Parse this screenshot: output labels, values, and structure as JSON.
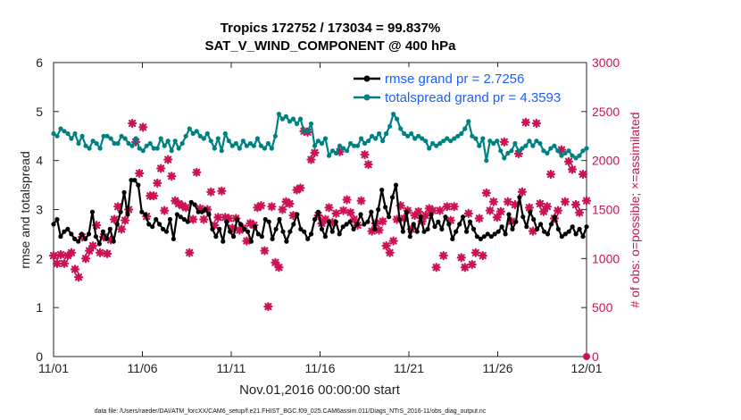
{
  "chart_data": {
    "type": "line",
    "title": "Tropics 172752 / 173034 = 99.837%",
    "subtitle": "SAT_V_WIND_COMPONENT @ 400 hPa",
    "xlabel": "Nov.01,2016 00:00:00 start",
    "ylabel": "rmse and totalspread",
    "ylabel_right": "# of obs: o=possible; ×=assimilated",
    "footnote": "data file: /Users/raeder/DAI/ATM_forcXX/CAM6_setup/f.e21.FHIST_BGC.f09_025.CAM6assim.011/Diags_NTrS_2016-11/obs_diag_output.nc",
    "x_ticks": [
      "11/01",
      "11/06",
      "11/11",
      "11/16",
      "11/21",
      "11/26",
      "12/01"
    ],
    "xlim": [
      0,
      30
    ],
    "ylim": [
      0,
      6
    ],
    "y_ticks": [
      "0",
      "1",
      "2",
      "3",
      "4",
      "5",
      "6"
    ],
    "ylim_right": [
      0,
      3000
    ],
    "y_ticks_right": [
      "0",
      "500",
      "1000",
      "1500",
      "2000",
      "2500",
      "3000"
    ],
    "colors": {
      "rmse": "#000000",
      "totalspread": "#008080",
      "obs": "#cc1155",
      "legend_text": "#1a5fff",
      "right_axis": "#cc1155"
    },
    "series": [
      {
        "name": "rmse",
        "legend": "rmse grand pr = 2.7256",
        "values": [
          2.7,
          2.8,
          2.45,
          2.55,
          2.6,
          2.5,
          2.4,
          2.35,
          2.5,
          2.4,
          2.5,
          2.95,
          2.45,
          2.3,
          2.55,
          2.4,
          2.6,
          2.35,
          2.7,
          2.95,
          3.35,
          2.9,
          3.6,
          3.6,
          3.5,
          2.95,
          2.9,
          2.7,
          2.65,
          2.8,
          2.7,
          2.6,
          2.55,
          2.8,
          2.4,
          2.9,
          2.85,
          2.8,
          2.75,
          3.15,
          3.1,
          2.95,
          2.95,
          3.0,
          2.9,
          2.6,
          2.45,
          2.6,
          2.35,
          2.75,
          2.55,
          2.45,
          2.8,
          2.7,
          2.6,
          2.55,
          2.35,
          2.65,
          2.5,
          2.45,
          2.8,
          2.75,
          2.4,
          2.6,
          2.8,
          2.55,
          2.35,
          2.55,
          2.7,
          2.9,
          2.6,
          2.55,
          2.4,
          2.5,
          2.8,
          2.95,
          2.6,
          2.45,
          2.75,
          2.55,
          2.75,
          2.5,
          2.65,
          2.7,
          2.75,
          2.6,
          2.7,
          2.9,
          2.7,
          2.75,
          2.95,
          2.6,
          3.0,
          3.4,
          3.05,
          2.85,
          3.25,
          3.5,
          2.8,
          2.55,
          2.95,
          2.45,
          2.7,
          2.55,
          2.85,
          2.55,
          2.6,
          2.9,
          2.65,
          2.75,
          2.6,
          2.85,
          2.7,
          2.4,
          2.55,
          2.7,
          2.85,
          2.55,
          2.75,
          2.6,
          2.45,
          2.4,
          2.45,
          2.5,
          2.45,
          2.5,
          2.55,
          2.65,
          2.5,
          2.9,
          2.6,
          2.75,
          3.25,
          2.85,
          2.65,
          2.95,
          2.8,
          2.6,
          2.7,
          2.55,
          2.5,
          2.7,
          2.85,
          2.6,
          2.45,
          2.5,
          2.55,
          2.65,
          2.5,
          2.6,
          2.45,
          2.65
        ]
      },
      {
        "name": "totalspread",
        "legend": "totalspread grand pr = 4.3593",
        "values": [
          4.55,
          4.5,
          4.65,
          4.6,
          4.55,
          4.45,
          4.55,
          4.35,
          4.5,
          4.3,
          4.25,
          4.4,
          4.35,
          4.25,
          4.5,
          4.5,
          4.45,
          4.35,
          4.35,
          4.5,
          4.45,
          4.35,
          4.3,
          4.45,
          4.25,
          4.2,
          4.3,
          4.35,
          4.25,
          4.25,
          4.45,
          4.3,
          4.4,
          4.2,
          4.4,
          4.25,
          4.35,
          4.5,
          4.65,
          4.55,
          4.6,
          4.5,
          4.45,
          4.55,
          4.4,
          4.25,
          4.45,
          4.2,
          4.55,
          4.4,
          4.3,
          4.35,
          4.25,
          4.4,
          4.3,
          4.35,
          4.3,
          4.45,
          4.3,
          4.25,
          4.35,
          4.25,
          4.5,
          4.95,
          4.85,
          4.9,
          4.8,
          4.85,
          4.75,
          4.85,
          4.6,
          4.6,
          4.75,
          4.3,
          4.4,
          4.35,
          4.45,
          4.1,
          4.2,
          4.15,
          4.3,
          4.25,
          4.2,
          4.35,
          4.3,
          4.3,
          4.45,
          4.35,
          4.4,
          4.5,
          4.45,
          4.55,
          4.4,
          4.55,
          4.7,
          4.95,
          4.85,
          4.65,
          4.55,
          4.5,
          4.55,
          4.45,
          4.5,
          4.45,
          4.4,
          4.25,
          4.35,
          4.3,
          4.35,
          4.4,
          4.45,
          4.4,
          4.45,
          4.5,
          4.55,
          4.65,
          4.8,
          4.5,
          4.45,
          4.3,
          4.45,
          4.0,
          4.4,
          4.35,
          4.4,
          4.2,
          4.05,
          4.15,
          4.2,
          4.35,
          4.2,
          4.25,
          4.3,
          4.4,
          4.3,
          4.4,
          4.35,
          4.2,
          4.15,
          4.25,
          4.3,
          4.2,
          4.1,
          4.15,
          4.2,
          4.1,
          4.05,
          4.1,
          4.2,
          4.25
        ]
      }
    ],
    "obs_assimilated": {
      "name": "# obs assimilated",
      "values": [
        1030,
        950,
        1040,
        950,
        1030,
        1060,
        890,
        810,
        1220,
        1000,
        1080,
        1130,
        1340,
        1060,
        1220,
        1050,
        1190,
        1400,
        1530,
        1300,
        1390,
        1500,
        2380,
        2190,
        1870,
        2340,
        1430,
        1640,
        1640,
        1770,
        1920,
        1490,
        2010,
        1840,
        1590,
        1560,
        1540,
        1520,
        1060,
        1400,
        1880,
        1510,
        1400,
        1500,
        1680,
        1340,
        1420,
        1690,
        1420,
        1410,
        1310,
        1410,
        1290,
        1310,
        1180,
        1360,
        1340,
        1520,
        1540,
        1080,
        510,
        1530,
        960,
        910,
        1500,
        1580,
        1560,
        1440,
        1700,
        1720,
        2300,
        2290,
        2010,
        2080,
        1440,
        1360,
        1400,
        1520,
        1370,
        1460,
        2090,
        1490,
        1600,
        1470,
        1400,
        1340,
        1590,
        2060,
        1960,
        1280,
        1360,
        1290,
        1380,
        1130,
        1060,
        1180,
        1400,
        1540,
        1410,
        1490,
        1300,
        1440,
        1480,
        1380,
        1440,
        1510,
        1490,
        910,
        1490,
        1030,
        1530,
        1390,
        1530,
        2710,
        1010,
        910,
        1460,
        940,
        1060,
        1410,
        1030,
        1670,
        1490,
        1580,
        1420,
        1480,
        2190,
        1580,
        1380,
        1550,
        2070,
        1680,
        2390,
        1520,
        1280,
        2380,
        1560,
        1480,
        1530,
        1860,
        1410,
        1490,
        2110,
        1580,
        1990,
        1910,
        1550,
        1470,
        1860,
        1590
      ]
    }
  }
}
